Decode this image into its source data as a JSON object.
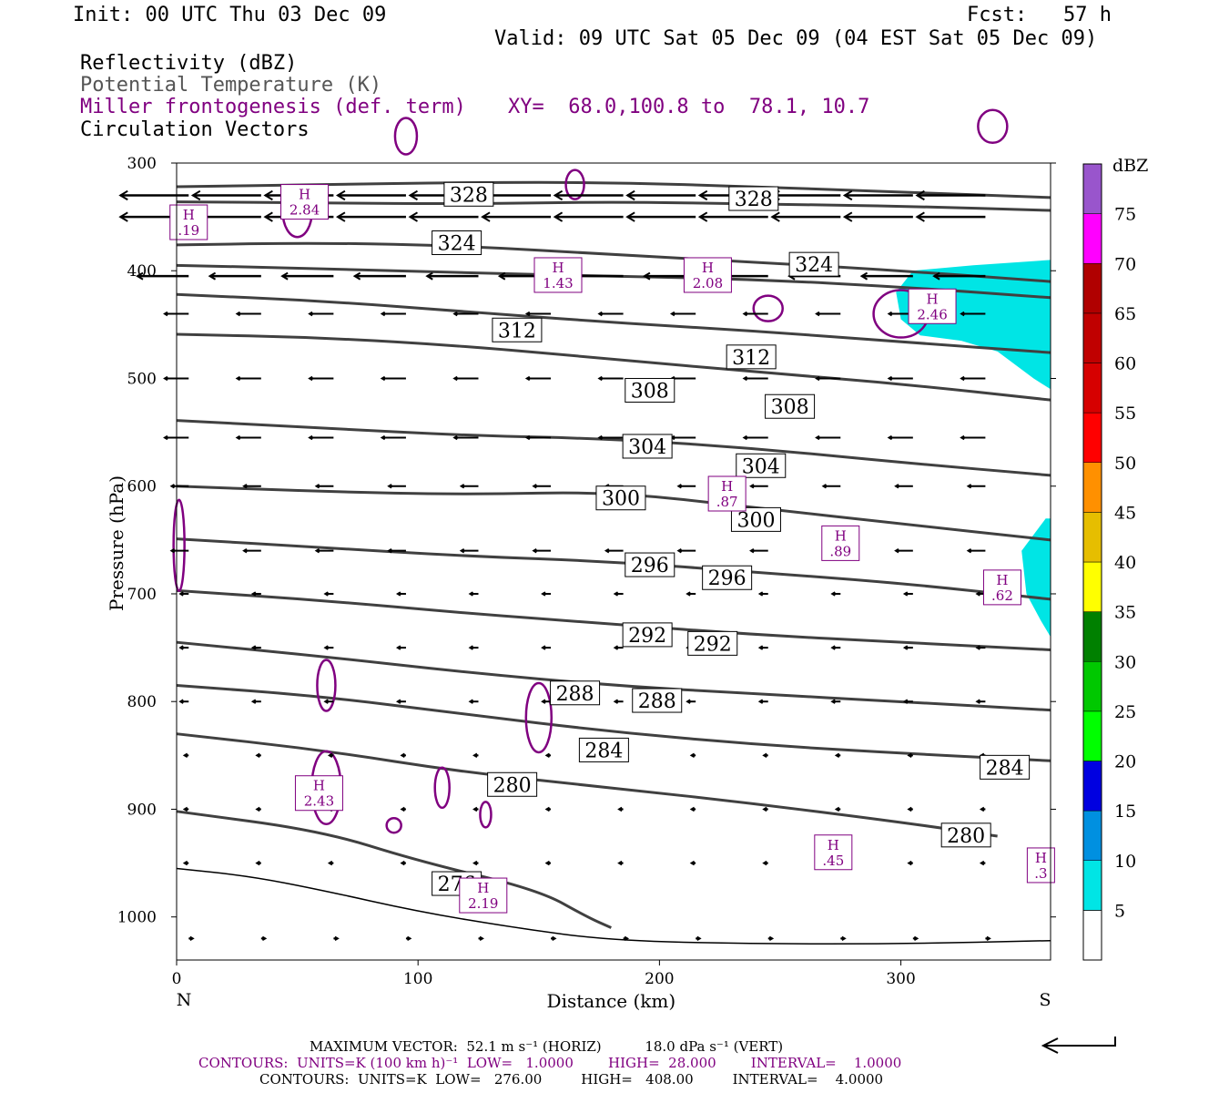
{
  "header": {
    "init": "Init: 00 UTC Thu 03 Dec 09",
    "fcst": "Fcst:   57 h",
    "valid": "Valid: 09 UTC Sat 05 Dec 09 (04 EST Sat 05 Dec 09)",
    "fields": [
      {
        "text": "Reflectivity (dBZ)",
        "color": "#000000"
      },
      {
        "text": "Potential Temperature (K)",
        "color": "#555555"
      },
      {
        "text": "Miller frontogenesis (def. term)",
        "color": "#800080"
      },
      {
        "text": "Circulation Vectors",
        "color": "#000000"
      }
    ],
    "xy": "XY=  68.0,100.8 to  78.1, 10.7"
  },
  "chart_data": {
    "type": "cross-section",
    "xlabel": "Distance (km)",
    "ylabel": "Pressure (hPa)",
    "xlim": [
      0,
      362
    ],
    "ylim": [
      1040,
      300
    ],
    "xticks": [
      "0",
      "100",
      "200",
      "300"
    ],
    "yticks": [
      "300",
      "400",
      "500",
      "600",
      "700",
      "800",
      "900",
      "1000"
    ],
    "end_labels": {
      "left": "N",
      "right": "S"
    },
    "theta_isentropes": [
      {
        "level": 328,
        "points": [
          [
            0,
            322
          ],
          [
            60,
            320
          ],
          [
            120,
            318
          ],
          [
            180,
            318
          ],
          [
            240,
            322
          ],
          [
            300,
            327
          ],
          [
            362,
            332
          ]
        ]
      },
      {
        "level": 324,
        "points": [
          [
            0,
            376
          ],
          [
            60,
            374
          ],
          [
            120,
            377
          ],
          [
            180,
            385
          ],
          [
            240,
            392
          ],
          [
            300,
            400
          ],
          [
            362,
            410
          ]
        ]
      },
      {
        "level": 320,
        "points": [
          [
            0,
            336
          ],
          [
            60,
            337
          ],
          [
            120,
            338
          ],
          [
            180,
            336
          ],
          [
            240,
            338
          ],
          [
            300,
            340
          ],
          [
            362,
            344
          ]
        ]
      },
      {
        "level": 316,
        "points": [
          [
            0,
            395
          ],
          [
            60,
            398
          ],
          [
            120,
            402
          ],
          [
            180,
            405
          ],
          [
            240,
            408
          ],
          [
            300,
            415
          ],
          [
            362,
            425
          ]
        ]
      },
      {
        "level": 312,
        "points": [
          [
            0,
            422
          ],
          [
            60,
            428
          ],
          [
            120,
            438
          ],
          [
            180,
            448
          ],
          [
            240,
            456
          ],
          [
            300,
            466
          ],
          [
            362,
            476
          ]
        ]
      },
      {
        "level": 308,
        "points": [
          [
            0,
            459
          ],
          [
            60,
            462
          ],
          [
            120,
            470
          ],
          [
            180,
            482
          ],
          [
            240,
            494
          ],
          [
            300,
            505
          ],
          [
            362,
            520
          ]
        ]
      },
      {
        "level": 304,
        "points": [
          [
            0,
            539
          ],
          [
            60,
            546
          ],
          [
            120,
            553
          ],
          [
            180,
            556
          ],
          [
            240,
            565
          ],
          [
            300,
            578
          ],
          [
            362,
            590
          ]
        ]
      },
      {
        "level": 300,
        "points": [
          [
            0,
            600
          ],
          [
            60,
            605
          ],
          [
            120,
            608
          ],
          [
            180,
            605
          ],
          [
            240,
            620
          ],
          [
            300,
            635
          ],
          [
            362,
            650
          ]
        ]
      },
      {
        "level": 296,
        "points": [
          [
            0,
            649
          ],
          [
            60,
            657
          ],
          [
            120,
            665
          ],
          [
            180,
            670
          ],
          [
            240,
            680
          ],
          [
            300,
            690
          ],
          [
            362,
            705
          ]
        ]
      },
      {
        "level": 292,
        "points": [
          [
            0,
            697
          ],
          [
            60,
            706
          ],
          [
            120,
            718
          ],
          [
            180,
            728
          ],
          [
            240,
            738
          ],
          [
            300,
            745
          ],
          [
            362,
            752
          ]
        ]
      },
      {
        "level": 288,
        "points": [
          [
            0,
            745
          ],
          [
            60,
            758
          ],
          [
            120,
            773
          ],
          [
            180,
            785
          ],
          [
            240,
            793
          ],
          [
            300,
            800
          ],
          [
            362,
            808
          ]
        ]
      },
      {
        "level": 284,
        "points": [
          [
            0,
            785
          ],
          [
            60,
            795
          ],
          [
            120,
            812
          ],
          [
            180,
            828
          ],
          [
            240,
            840
          ],
          [
            300,
            848
          ],
          [
            362,
            855
          ]
        ]
      },
      {
        "level": 280,
        "points": [
          [
            0,
            830
          ],
          [
            60,
            845
          ],
          [
            120,
            866
          ],
          [
            180,
            880
          ],
          [
            240,
            895
          ],
          [
            300,
            912
          ],
          [
            340,
            925
          ]
        ]
      },
      {
        "level": 276,
        "points": [
          [
            0,
            902
          ],
          [
            60,
            920
          ],
          [
            100,
            948
          ],
          [
            150,
            975
          ],
          [
            170,
            1000
          ],
          [
            180,
            1010
          ]
        ]
      }
    ],
    "theta_labels": [
      {
        "text": "328",
        "x": 121,
        "y": 329
      },
      {
        "text": "328",
        "x": 239,
        "y": 333
      },
      {
        "text": "324",
        "x": 116,
        "y": 374
      },
      {
        "text": "324",
        "x": 264,
        "y": 394
      },
      {
        "text": "312",
        "x": 141,
        "y": 455
      },
      {
        "text": "312",
        "x": 238,
        "y": 480
      },
      {
        "text": "308",
        "x": 196,
        "y": 511
      },
      {
        "text": "308",
        "x": 254,
        "y": 526
      },
      {
        "text": "304",
        "x": 195,
        "y": 563
      },
      {
        "text": "304",
        "x": 242,
        "y": 581
      },
      {
        "text": "300",
        "x": 184,
        "y": 611
      },
      {
        "text": "300",
        "x": 240,
        "y": 631
      },
      {
        "text": "296",
        "x": 196,
        "y": 673
      },
      {
        "text": "296",
        "x": 228,
        "y": 685
      },
      {
        "text": "292",
        "x": 195,
        "y": 738
      },
      {
        "text": "292",
        "x": 222,
        "y": 746
      },
      {
        "text": "288",
        "x": 165,
        "y": 792
      },
      {
        "text": "288",
        "x": 199,
        "y": 799
      },
      {
        "text": "284",
        "x": 177,
        "y": 845
      },
      {
        "text": "284",
        "x": 343,
        "y": 861
      },
      {
        "text": "280",
        "x": 139,
        "y": 877
      },
      {
        "text": "280",
        "x": 327,
        "y": 924
      },
      {
        "text": "276",
        "x": 116,
        "y": 969
      }
    ],
    "frontogenesis_highs": [
      {
        "label": "H",
        "value": "2.84",
        "x": 53,
        "y": 336
      },
      {
        "label": "H",
        "value": ".19",
        "x": 5,
        "y": 355
      },
      {
        "label": "H",
        "value": "1.43",
        "x": 158,
        "y": 404
      },
      {
        "label": "H",
        "value": "2.08",
        "x": 220,
        "y": 404
      },
      {
        "label": "H",
        "value": "2.46",
        "x": 313,
        "y": 433
      },
      {
        "label": "H",
        "value": ".87",
        "x": 228,
        "y": 607
      },
      {
        "label": "H",
        "value": ".89",
        "x": 275,
        "y": 653
      },
      {
        "label": "H",
        "value": ".62",
        "x": 342,
        "y": 694
      },
      {
        "label": "H",
        "value": "2.43",
        "x": 59,
        "y": 885
      },
      {
        "label": "H",
        "value": ".45",
        "x": 272,
        "y": 940
      },
      {
        "label": "H",
        "value": "2.19",
        "x": 127,
        "y": 980
      },
      {
        "label": "H",
        "value": ".3",
        "x": 358,
        "y": 952
      }
    ],
    "reflectivity_regions": [
      {
        "dbz": 5,
        "points": [
          [
            298,
            420
          ],
          [
            305,
            400
          ],
          [
            330,
            395
          ],
          [
            362,
            390
          ],
          [
            362,
            510
          ],
          [
            355,
            500
          ],
          [
            340,
            475
          ],
          [
            325,
            465
          ],
          [
            308,
            460
          ],
          [
            300,
            445
          ]
        ]
      },
      {
        "dbz": 5,
        "points": [
          [
            350,
            660
          ],
          [
            360,
            630
          ],
          [
            362,
            630
          ],
          [
            362,
            740
          ],
          [
            358,
            725
          ],
          [
            352,
            700
          ]
        ]
      }
    ],
    "colorbar": {
      "title": "dBZ",
      "levels": [
        "5",
        "10",
        "15",
        "20",
        "25",
        "30",
        "35",
        "40",
        "45",
        "50",
        "55",
        "60",
        "65",
        "70",
        "75"
      ],
      "colors": [
        "#00e5e5",
        "#0090e0",
        "#0000e0",
        "#00ff00",
        "#00c800",
        "#008000",
        "#ffff00",
        "#e6be00",
        "#ff9000",
        "#ff0000",
        "#d60000",
        "#c00000",
        "#b00000",
        "#ff00ff",
        "#9955cc"
      ]
    }
  },
  "footer": {
    "max_vector": "MAXIMUM VECTOR:  52.1 m s⁻¹ (HORIZ)          18.0 dPa s⁻¹ (VERT)",
    "contours_purple": "CONTOURS:  UNITS=K (100 km h)⁻¹  LOW=   1.0000        HIGH=  28.000        INTERVAL=    1.0000",
    "contours_black": "CONTOURS:  UNITS=K  LOW=   276.00         HIGH=   408.00         INTERVAL=    4.0000"
  },
  "colors": {
    "theta": "#404040",
    "frontogenesis": "#800080",
    "vectors": "#000000"
  }
}
